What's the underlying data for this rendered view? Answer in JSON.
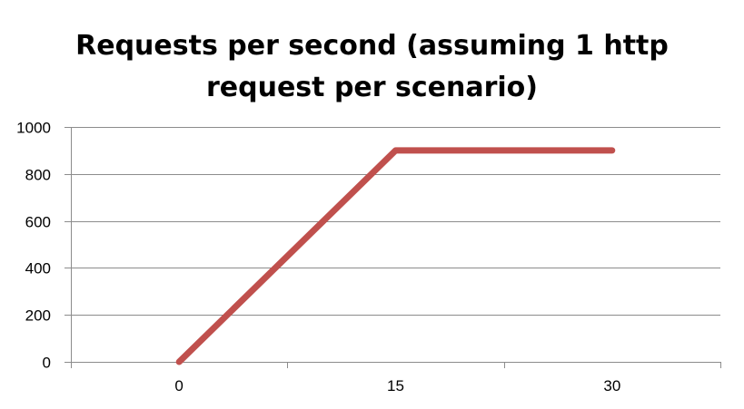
{
  "chart_data": {
    "type": "line",
    "title_lines": [
      "Requests per second (assuming 1 http",
      "request per scenario)"
    ],
    "xlabel": "",
    "ylabel": "",
    "categories": [
      "0",
      "15",
      "30"
    ],
    "series": [
      {
        "values": [
          0,
          900,
          900
        ],
        "color": "#c0504d"
      }
    ],
    "ylim": [
      0,
      1000
    ],
    "yticks": [
      0,
      200,
      400,
      600,
      800,
      1000
    ],
    "grid": true,
    "legend": "none"
  }
}
